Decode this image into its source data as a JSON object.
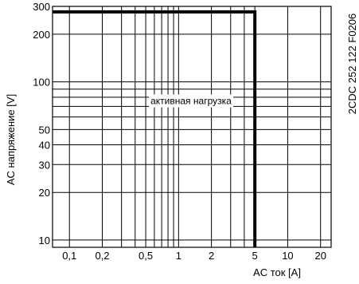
{
  "chart_data": {
    "type": "line",
    "x_scale": "log",
    "y_scale": "log",
    "xlim": [
      0.07,
      25
    ],
    "ylim": [
      9,
      300
    ],
    "x_ticks": [
      0.1,
      0.2,
      0.5,
      1,
      2,
      5,
      10,
      20
    ],
    "x_tick_labels": [
      "0,1",
      "0,2",
      "0,5",
      "1",
      "2",
      "5",
      "10",
      "20"
    ],
    "y_ticks": [
      10,
      20,
      30,
      40,
      50,
      100,
      200,
      300
    ],
    "y_tick_labels": [
      "10",
      "20",
      "30",
      "40",
      "50",
      "100",
      "200",
      "300"
    ],
    "x_grid": [
      0.07,
      0.1,
      0.2,
      0.3,
      0.4,
      0.5,
      0.6,
      0.7,
      0.8,
      0.9,
      1,
      2,
      3,
      4,
      5,
      10,
      20
    ],
    "y_grid": [
      10,
      20,
      30,
      40,
      50,
      60,
      70,
      80,
      90,
      100,
      200,
      300
    ],
    "grid": true,
    "xlabel": "AC ток [A]",
    "ylabel": "AC напряжение [V]",
    "series": [
      {
        "x": [
          0.07,
          5,
          5
        ],
        "y": [
          277,
          277,
          9
        ],
        "color": "#000000"
      }
    ],
    "annotation": "активная нагрузка",
    "annotation_at": {
      "x": 1.3,
      "y": 75
    }
  },
  "figure_code": "2CDC 252 122 F0206"
}
